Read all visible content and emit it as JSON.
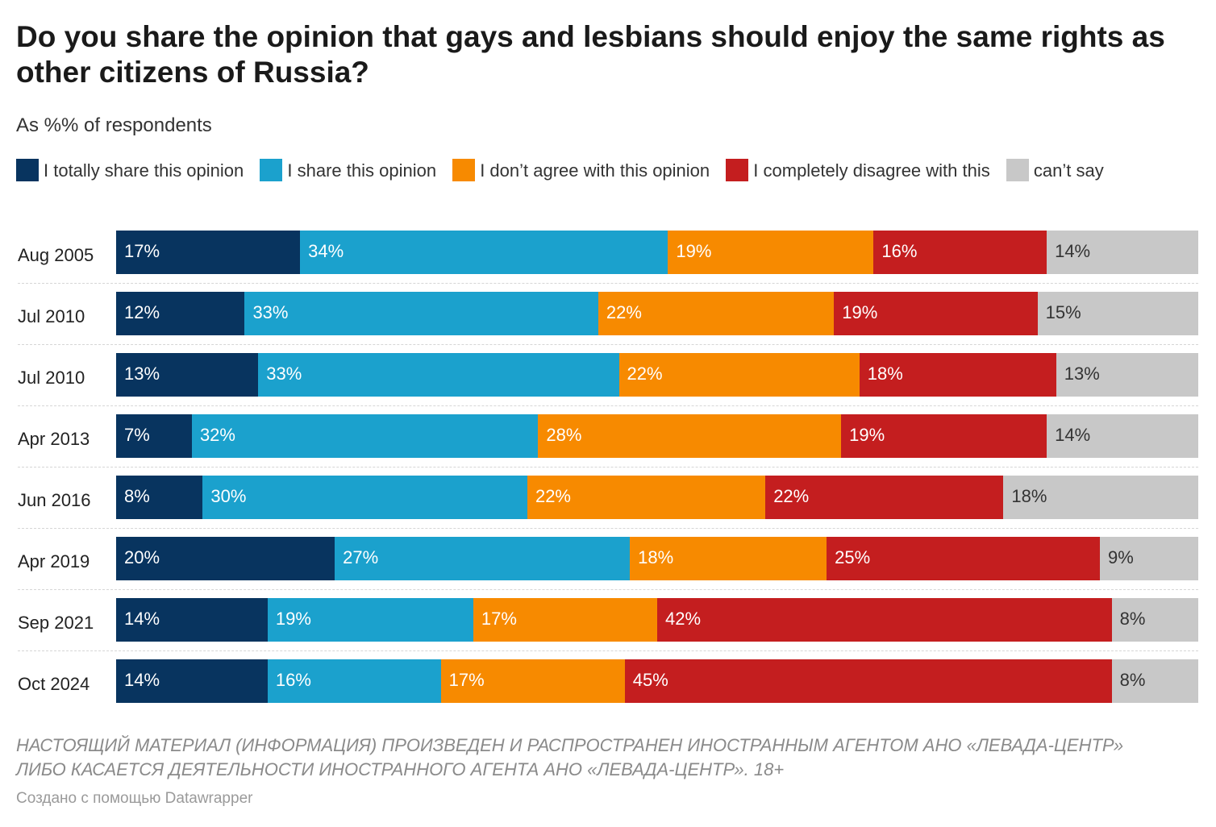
{
  "title": "Do you share the opinion that gays and lesbians should enjoy the same rights as other citizens of Russia?",
  "subtitle": "As %% of respondents",
  "notes": "НАСТОЯЩИЙ МАТЕРИАЛ (ИНФОРМАЦИЯ) ПРОИЗВЕДЕН И РАСПРОСТРАНЕН ИНОСТРАННЫМ АГЕНТОМ АНО «ЛЕВАДА-ЦЕНТР» ЛИБО КАСАЕТСЯ ДЕЯТЕЛЬНОСТИ ИНОСТРАННОГО АГЕНТА АНО «ЛЕВАДА-ЦЕНТР». 18+",
  "credit": "Создано с помощью Datawrapper",
  "chart_data": {
    "type": "bar",
    "orientation": "horizontal",
    "stacked": true,
    "value_suffix": "%",
    "categories": [
      "Aug 2005",
      "Jul 2010",
      "Jul 2010",
      "Apr 2013",
      "Jun 2016",
      "Apr 2019",
      "Sep 2021",
      "Oct 2024"
    ],
    "series": [
      {
        "name": "I totally share this opinion",
        "color": "#08345f",
        "text_color": "#ffffff",
        "values": [
          17,
          12,
          13,
          7,
          8,
          20,
          14,
          14
        ]
      },
      {
        "name": "I share this opinion",
        "color": "#1ba1cd",
        "text_color": "#ffffff",
        "values": [
          34,
          33,
          33,
          32,
          30,
          27,
          19,
          16
        ]
      },
      {
        "name": "I don’t agree with this opinion",
        "color": "#f78a00",
        "text_color": "#ffffff",
        "values": [
          19,
          22,
          22,
          28,
          22,
          18,
          17,
          17
        ]
      },
      {
        "name": "I completely disagree with this",
        "color": "#c41e1f",
        "text_color": "#ffffff",
        "values": [
          16,
          19,
          18,
          19,
          22,
          25,
          42,
          45
        ]
      },
      {
        "name": "can’t say",
        "color": "#c8c8c8",
        "text_color": "#333333",
        "values": [
          14,
          15,
          13,
          14,
          18,
          9,
          8,
          8
        ]
      }
    ],
    "legend_position": "top",
    "grid": false
  }
}
